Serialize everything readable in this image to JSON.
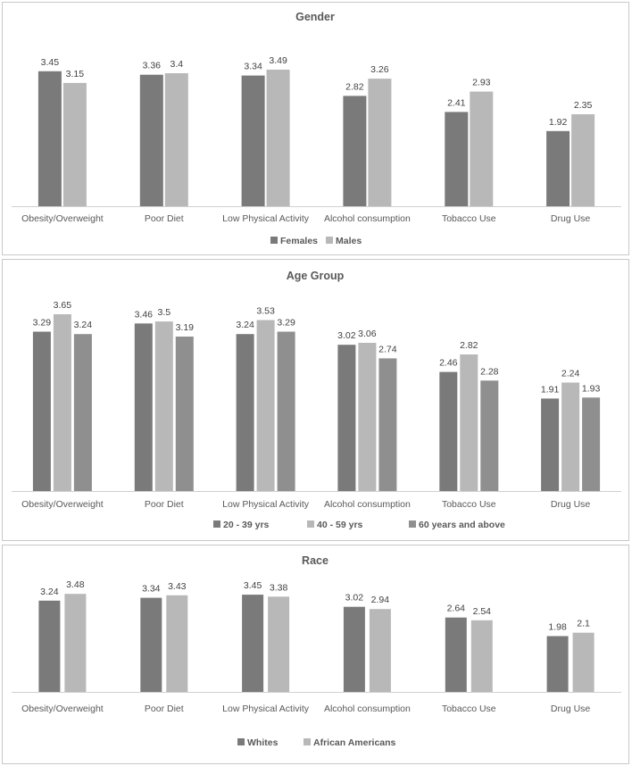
{
  "chart_data": [
    {
      "type": "bar",
      "title": "Gender",
      "categories": [
        "Obesity/Overweight",
        "Poor Diet",
        "Low Physical Activity",
        "Alcohol consumption",
        "Tobacco Use",
        "Drug Use"
      ],
      "series": [
        {
          "name": "Females",
          "values": [
            3.45,
            3.36,
            3.34,
            2.82,
            2.41,
            1.92
          ],
          "color": "#7a7a7a"
        },
        {
          "name": "Males",
          "values": [
            3.15,
            3.4,
            3.49,
            3.26,
            2.93,
            2.35
          ],
          "color": "#b8b8b8"
        }
      ],
      "ylim": [
        0,
        3.65
      ],
      "legend": "bottom"
    },
    {
      "type": "bar",
      "title": "Age Group",
      "categories": [
        "Obesity/Overweight",
        "Poor Diet",
        "Low Physical Activity",
        "Alcohol consumption",
        "Tobacco Use",
        "Drug Use"
      ],
      "series": [
        {
          "name": "20 - 39 yrs",
          "values": [
            3.29,
            3.46,
            3.24,
            3.02,
            2.46,
            1.91
          ],
          "color": "#7a7a7a"
        },
        {
          "name": "40 - 59 yrs",
          "values": [
            3.65,
            3.5,
            3.53,
            3.06,
            2.82,
            2.24
          ],
          "color": "#b8b8b8"
        },
        {
          "name": "60 years and above",
          "values": [
            3.24,
            3.19,
            3.29,
            2.74,
            2.28,
            1.93
          ],
          "color": "#8f8f8f"
        }
      ],
      "ylim": [
        0,
        3.65
      ],
      "legend": "bottom"
    },
    {
      "type": "bar",
      "title": "Race",
      "categories": [
        "Obesity/Overweight",
        "Poor Diet",
        "Low Physical Activity",
        "Alcohol consumption",
        "Tobacco Use",
        "Drug Use"
      ],
      "series": [
        {
          "name": "Whites",
          "values": [
            3.24,
            3.34,
            3.45,
            3.02,
            2.64,
            1.98
          ],
          "color": "#7a7a7a"
        },
        {
          "name": "African Americans",
          "values": [
            3.48,
            3.43,
            3.38,
            2.94,
            2.54,
            2.1
          ],
          "color": "#b8b8b8"
        }
      ],
      "ylim": [
        0,
        4.5
      ],
      "legend": "bottom"
    }
  ]
}
